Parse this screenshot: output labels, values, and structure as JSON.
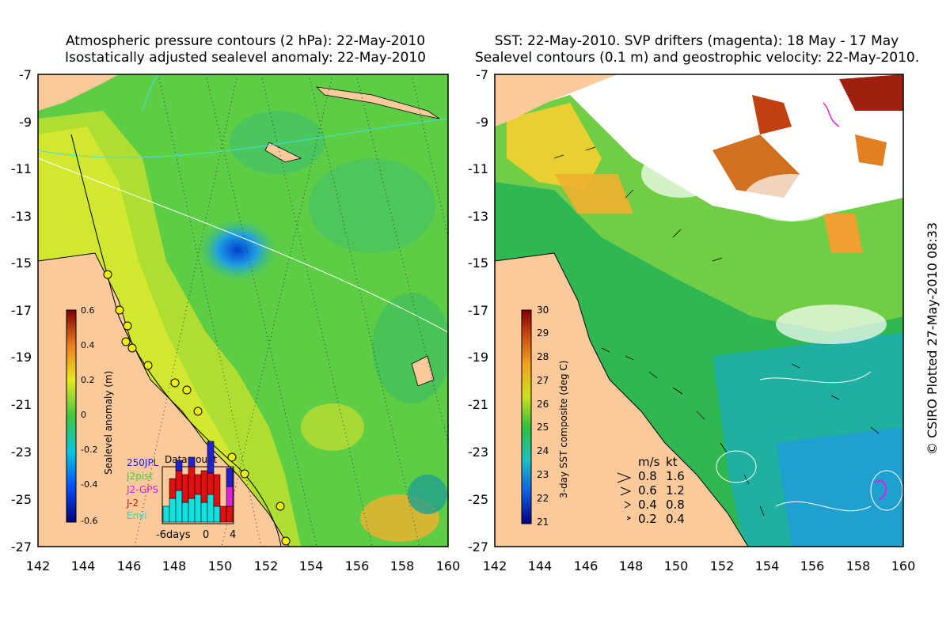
{
  "left_panel": {
    "title_line1": "Atmospheric pressure contours (2 hPa): 22-May-2010",
    "title_line2": "Isostatically adjusted sealevel anomaly: 22-May-2010",
    "y_ticks": [
      "-7",
      "-9",
      "-11",
      "-13",
      "-15",
      "-17",
      "-19",
      "-21",
      "-23",
      "-25",
      "-27"
    ],
    "x_ticks": [
      "142",
      "144",
      "146",
      "148",
      "150",
      "152",
      "154",
      "156",
      "158",
      "160"
    ],
    "colorbar": {
      "label": "Sealevel anomaly (m)",
      "ticks": [
        "0.6",
        "0.4",
        "0.2",
        "0",
        "-0.2",
        "-0.4",
        "-0.6"
      ]
    },
    "inset": {
      "title": "Data count",
      "legend": [
        "250JPL",
        "J2pist",
        "J2-GPS",
        "J-2",
        "Envi"
      ],
      "x_labels": [
        "-6days",
        "0",
        "4"
      ],
      "colors": [
        "#2020d0",
        "#40d040",
        "#e020e0",
        "#e01010",
        "#10e0e0"
      ]
    }
  },
  "right_panel": {
    "title_line1": "SST: 22-May-2010. SVP drifters (magenta): 18 May - 17 May",
    "title_line2": "Sealevel contours (0.1 m) and geostrophic velocity: 22-May-2010.",
    "y_ticks": [
      "-7",
      "-9",
      "-11",
      "-13",
      "-15",
      "-17",
      "-19",
      "-21",
      "-23",
      "-25",
      "-27"
    ],
    "x_ticks": [
      "142",
      "144",
      "146",
      "148",
      "150",
      "152",
      "154",
      "156",
      "158",
      "160"
    ],
    "colorbar": {
      "label": "3-day SST composite (deg C)",
      "ticks": [
        "30",
        "29",
        "28",
        "27",
        "26",
        "25",
        "24",
        "23",
        "22",
        "21"
      ]
    },
    "velocity_legend": {
      "header_ms": "m/s",
      "header_kt": "kt",
      "rows": [
        {
          "ms": "0.8",
          "kt": "1.6"
        },
        {
          "ms": "0.6",
          "kt": "1.2"
        },
        {
          "ms": "0.4",
          "kt": "0.8"
        },
        {
          "ms": "0.2",
          "kt": "0.4"
        }
      ]
    }
  },
  "credit": "© CSIRO Plotted 27-May-2010 08:33",
  "colors": {
    "land": "#fbc99a",
    "ocean_green": "#5ecf3a",
    "ocean_yellow": "#c8e830",
    "low": "#1a6bd8"
  }
}
